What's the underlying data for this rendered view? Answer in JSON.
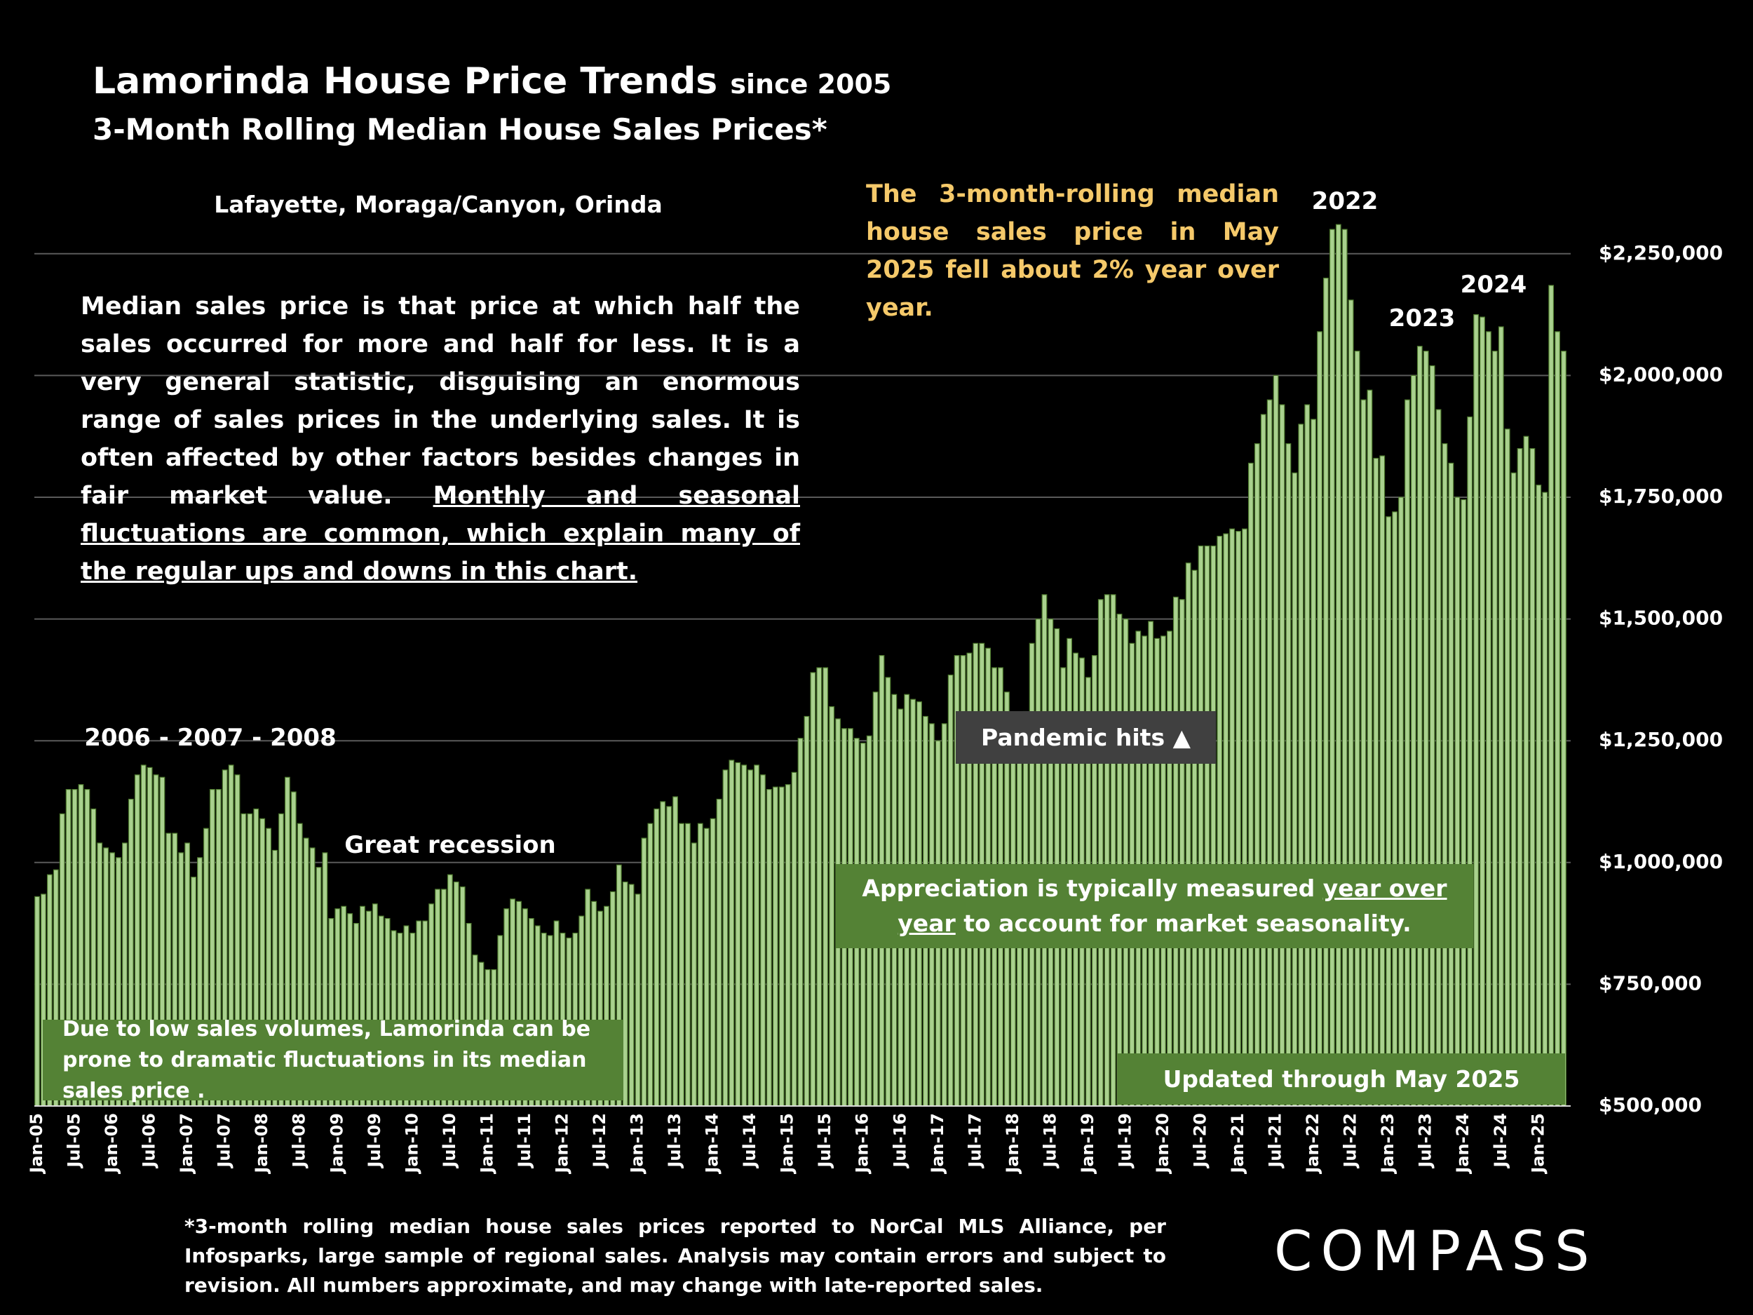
{
  "chart_data": {
    "type": "bar",
    "title": "Lamorinda House Price Trends",
    "title_suffix": "since 2005",
    "subtitle": "3-Month Rolling Median House Sales Prices*",
    "region": "Lafayette, Moraga/Canyon, Orinda",
    "description": [
      "Median sales price is that price at which half the sales occurred for more and half for less. It is a very general statistic, disguising an enormous range of sales prices in the underlying sales. It is often affected by other factors besides changes in fair market value. ",
      "Monthly and seasonal fluctuations are common, which explain many of the regular ups and downs in this chart."
    ],
    "highlight_note": "The 3-month-rolling median house sales price in May 2025 fell about 2% year over year.",
    "year_labels": [
      "2022",
      "2023",
      "2024"
    ],
    "period_labels": [
      "2006 - 2007 - 2008",
      "Great recession"
    ],
    "pandemic_note": "Pandemic hits ▲",
    "appreciation_note": [
      "Appreciation is typically measured ",
      "year over year",
      " to account for market seasonality."
    ],
    "volume_note": "Due to low sales volumes, Lamorinda can be prone to dramatic fluctuations in its median sales price .",
    "updated_note": "Updated through May 2025",
    "footnote": "*3-month rolling median house sales prices reported to NorCal MLS Alliance, per Infosparks, large sample of regional sales. Analysis may contain errors and subject to revision. All numbers approximate, and may change with late-reported sales.",
    "brand": "COMPASS",
    "color": "#a9d18e",
    "grid": true,
    "ylim": [
      500000,
      2400000
    ],
    "yticks": [
      {
        "value": 500000,
        "label": "$500,000"
      },
      {
        "value": 750000,
        "label": "$750,000"
      },
      {
        "value": 1000000,
        "label": "$1,000,000"
      },
      {
        "value": 1250000,
        "label": "$1,250,000"
      },
      {
        "value": 1500000,
        "label": "$1,500,000"
      },
      {
        "value": 1750000,
        "label": "$1,750,000"
      },
      {
        "value": 2000000,
        "label": "$2,000,000"
      },
      {
        "value": 2250000,
        "label": "$2,250,000"
      }
    ],
    "categories": [
      "Jan-05",
      null,
      null,
      null,
      null,
      null,
      "Jul-05",
      null,
      null,
      null,
      null,
      null,
      "Jan-06",
      null,
      null,
      null,
      null,
      null,
      "Jul-06",
      null,
      null,
      null,
      null,
      null,
      "Jan-07",
      null,
      null,
      null,
      null,
      null,
      "Jul-07",
      null,
      null,
      null,
      null,
      null,
      "Jan-08",
      null,
      null,
      null,
      null,
      null,
      "Jul-08",
      null,
      null,
      null,
      null,
      null,
      "Jan-09",
      null,
      null,
      null,
      null,
      null,
      "Jul-09",
      null,
      null,
      null,
      null,
      null,
      "Jan-10",
      null,
      null,
      null,
      null,
      null,
      "Jul-10",
      null,
      null,
      null,
      null,
      null,
      "Jan-11",
      null,
      null,
      null,
      null,
      null,
      "Jul-11",
      null,
      null,
      null,
      null,
      null,
      "Jan-12",
      null,
      null,
      null,
      null,
      null,
      "Jul-12",
      null,
      null,
      null,
      null,
      null,
      "Jan-13",
      null,
      null,
      null,
      null,
      null,
      "Jul-13",
      null,
      null,
      null,
      null,
      null,
      "Jan-14",
      null,
      null,
      null,
      null,
      null,
      "Jul-14",
      null,
      null,
      null,
      null,
      null,
      "Jan-15",
      null,
      null,
      null,
      null,
      null,
      "Jul-15",
      null,
      null,
      null,
      null,
      null,
      "Jan-16",
      null,
      null,
      null,
      null,
      null,
      "Jul-16",
      null,
      null,
      null,
      null,
      null,
      "Jan-17",
      null,
      null,
      null,
      null,
      null,
      "Jul-17",
      null,
      null,
      null,
      null,
      null,
      "Jan-18",
      null,
      null,
      null,
      null,
      null,
      "Jul-18",
      null,
      null,
      null,
      null,
      null,
      "Jan-19",
      null,
      null,
      null,
      null,
      null,
      "Jul-19",
      null,
      null,
      null,
      null,
      null,
      "Jan-20",
      null,
      null,
      null,
      null,
      null,
      "Jul-20",
      null,
      null,
      null,
      null,
      null,
      "Jan-21",
      null,
      null,
      null,
      null,
      null,
      "Jul-21",
      null,
      null,
      null,
      null,
      null,
      "Jan-22",
      null,
      null,
      null,
      null,
      null,
      "Jul-22",
      null,
      null,
      null,
      null,
      null,
      "Jan-23",
      null,
      null,
      null,
      null,
      null,
      "Jul-23",
      null,
      null,
      null,
      null,
      null,
      "Jan-24",
      null,
      null,
      null,
      null,
      null,
      "Jul-24",
      null,
      null,
      null,
      null,
      null,
      "Jan-25",
      null,
      null,
      null,
      null
    ],
    "values": [
      930000,
      935000,
      975000,
      985000,
      1100000,
      1150000,
      1150000,
      1160000,
      1150000,
      1110000,
      1040000,
      1030000,
      1020000,
      1010000,
      1040000,
      1130000,
      1180000,
      1200000,
      1195000,
      1180000,
      1175000,
      1060000,
      1060000,
      1020000,
      1040000,
      970000,
      1010000,
      1070000,
      1150000,
      1150000,
      1190000,
      1200000,
      1180000,
      1100000,
      1100000,
      1110000,
      1090000,
      1070000,
      1025000,
      1100000,
      1175000,
      1145000,
      1080000,
      1050000,
      1030000,
      990000,
      1020000,
      885000,
      905000,
      910000,
      895000,
      875000,
      910000,
      900000,
      915000,
      890000,
      885000,
      860000,
      855000,
      870000,
      855000,
      880000,
      880000,
      915000,
      945000,
      945000,
      975000,
      960000,
      950000,
      875000,
      810000,
      795000,
      780000,
      780000,
      850000,
      905000,
      925000,
      920000,
      905000,
      885000,
      870000,
      855000,
      850000,
      880000,
      855000,
      845000,
      855000,
      890000,
      945000,
      920000,
      900000,
      910000,
      940000,
      995000,
      960000,
      955000,
      935000,
      1050000,
      1080000,
      1110000,
      1125000,
      1115000,
      1135000,
      1080000,
      1080000,
      1040000,
      1080000,
      1070000,
      1090000,
      1130000,
      1190000,
      1210000,
      1205000,
      1200000,
      1190000,
      1200000,
      1180000,
      1150000,
      1155000,
      1155000,
      1160000,
      1185000,
      1255000,
      1300000,
      1390000,
      1400000,
      1400000,
      1320000,
      1295000,
      1275000,
      1275000,
      1255000,
      1245000,
      1260000,
      1350000,
      1425000,
      1380000,
      1345000,
      1315000,
      1345000,
      1335000,
      1330000,
      1300000,
      1285000,
      1250000,
      1285000,
      1385000,
      1425000,
      1425000,
      1430000,
      1450000,
      1450000,
      1440000,
      1400000,
      1400000,
      1350000,
      1300000,
      1290000,
      1310000,
      1450000,
      1500000,
      1550000,
      1500000,
      1480000,
      1400000,
      1460000,
      1430000,
      1420000,
      1380000,
      1425000,
      1540000,
      1550000,
      1550000,
      1510000,
      1500000,
      1450000,
      1475000,
      1465000,
      1495000,
      1460000,
      1465000,
      1475000,
      1545000,
      1540000,
      1615000,
      1600000,
      1650000,
      1650000,
      1650000,
      1670000,
      1675000,
      1685000,
      1680000,
      1685000,
      1820000,
      1860000,
      1920000,
      1950000,
      2000000,
      1940000,
      1860000,
      1800000,
      1900000,
      1940000,
      1910000,
      2090000,
      2200000,
      2300000,
      2310000,
      2300000,
      2155000,
      2050000,
      1950000,
      1970000,
      1830000,
      1835000,
      1710000,
      1720000,
      1750000,
      1950000,
      2000000,
      2060000,
      2050000,
      2020000,
      1930000,
      1860000,
      1820000,
      1750000,
      1745000,
      1915000,
      2125000,
      2120000,
      2090000,
      2050000,
      2100000,
      1890000,
      1800000,
      1850000,
      1875000,
      1850000,
      1775000,
      1760000,
      2185000,
      2090000,
      2050000
    ]
  }
}
